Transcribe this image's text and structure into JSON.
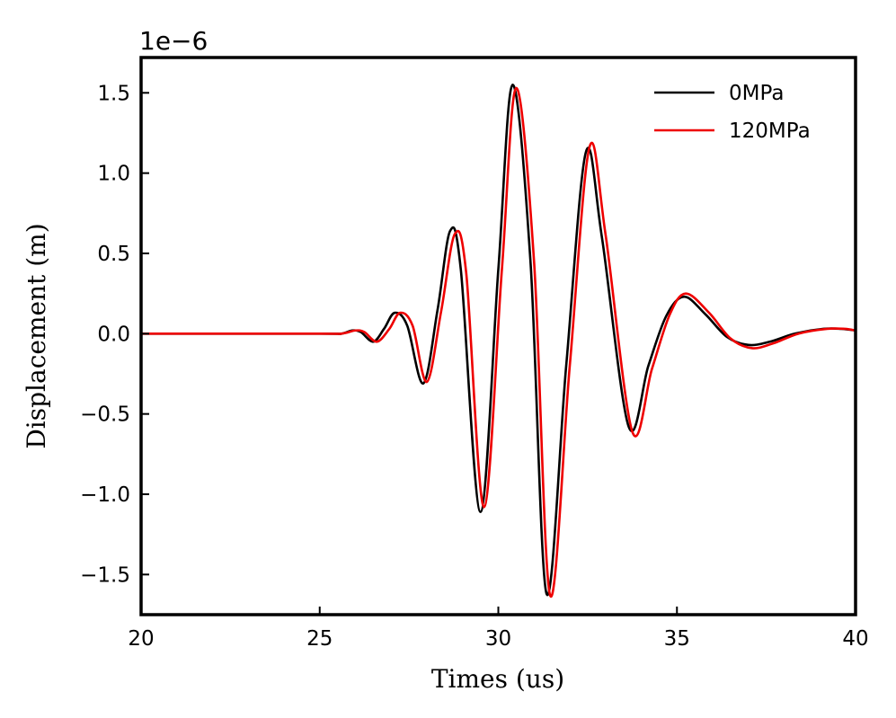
{
  "chart_data": {
    "type": "line",
    "title": "",
    "xlabel": "Times (us)",
    "ylabel": "Displacement (m)",
    "y_offset_label": "1e−6",
    "xlim": [
      20,
      40
    ],
    "ylim": [
      -1.75,
      1.72
    ],
    "x_ticks": [
      20,
      25,
      30,
      35,
      40
    ],
    "x_tick_labels": [
      "20",
      "25",
      "30",
      "35",
      "40"
    ],
    "y_ticks": [
      1.5,
      1.0,
      0.5,
      0.0,
      -0.5,
      -1.0,
      -1.5
    ],
    "y_tick_labels": [
      "1.5",
      "1.0",
      "0.5",
      "0.0",
      "−0.5",
      "−1.0",
      "−1.5"
    ],
    "grid": false,
    "legend_position": "top-right",
    "series": [
      {
        "name": "0MPa",
        "color": "#000000",
        "x": [
          20,
          25,
          25.6,
          25.9,
          26.15,
          26.5,
          26.8,
          27.1,
          27.45,
          27.9,
          28.3,
          28.65,
          28.95,
          29.5,
          30.0,
          30.4,
          30.9,
          31.35,
          31.9,
          32.45,
          32.9,
          33.65,
          34.2,
          34.7,
          35.2,
          35.8,
          36.4,
          37.0,
          37.6,
          38.3,
          39.1,
          39.6,
          40
        ],
        "values": [
          0.0,
          0.0,
          0.0,
          0.02,
          0.01,
          -0.05,
          0.03,
          0.13,
          0.05,
          -0.31,
          0.15,
          0.64,
          0.4,
          -1.11,
          0.4,
          1.55,
          0.45,
          -1.62,
          -0.2,
          1.13,
          0.6,
          -0.58,
          -0.2,
          0.11,
          0.23,
          0.12,
          -0.02,
          -0.07,
          -0.05,
          0.0,
          0.03,
          0.03,
          0.02
        ]
      },
      {
        "name": "120MPa",
        "color": "#ee0000",
        "x": [
          20,
          25,
          25.6,
          26.0,
          26.25,
          26.6,
          26.95,
          27.25,
          27.6,
          28.0,
          28.4,
          28.78,
          29.1,
          29.6,
          30.1,
          30.5,
          31.0,
          31.45,
          32.0,
          32.55,
          33.0,
          33.75,
          34.3,
          34.8,
          35.25,
          35.9,
          36.5,
          37.1,
          37.7,
          38.4,
          39.2,
          39.7,
          40
        ],
        "values": [
          0.0,
          0.0,
          0.0,
          0.02,
          0.01,
          -0.05,
          0.03,
          0.13,
          0.05,
          -0.3,
          0.14,
          0.62,
          0.38,
          -1.08,
          0.4,
          1.53,
          0.45,
          -1.63,
          -0.2,
          1.16,
          0.62,
          -0.61,
          -0.22,
          0.12,
          0.25,
          0.13,
          -0.03,
          -0.09,
          -0.06,
          0.0,
          0.03,
          0.03,
          0.02
        ]
      }
    ]
  }
}
